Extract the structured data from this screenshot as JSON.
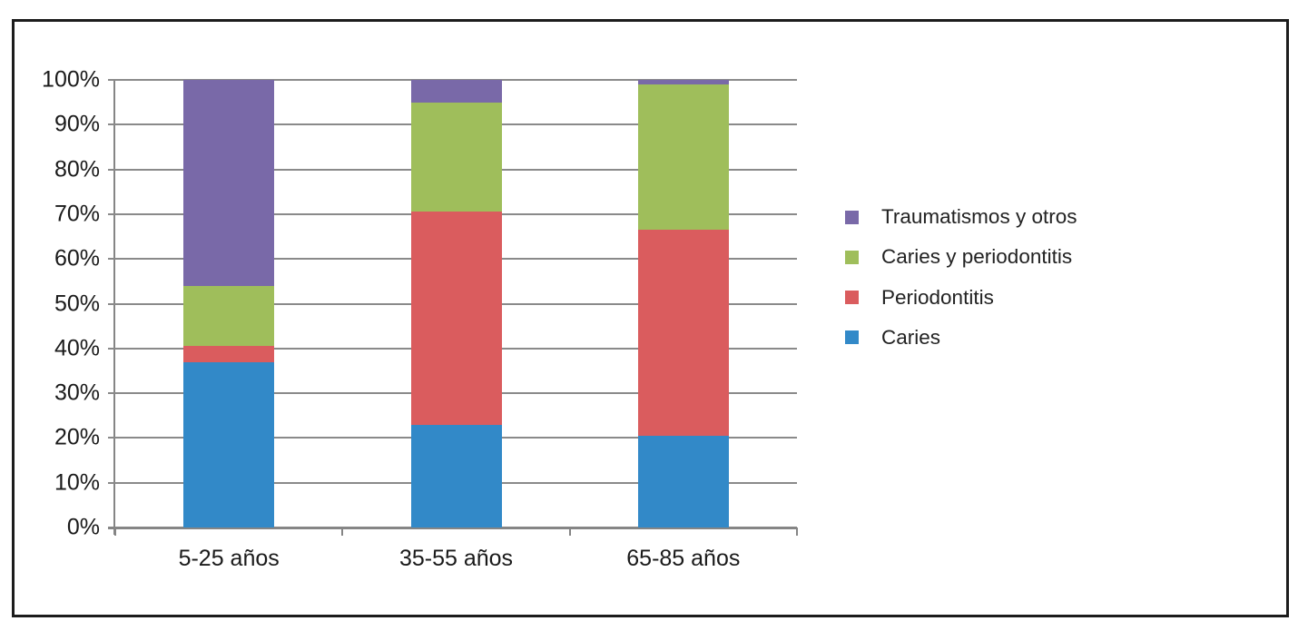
{
  "chart_data": {
    "type": "bar",
    "variant": "stacked-100-percent",
    "title": "",
    "xlabel": "",
    "ylabel": "",
    "grid": true,
    "categories": [
      "5-25 años",
      "35-55 años",
      "65-85 años"
    ],
    "series": [
      {
        "name": "Caries",
        "color": "#3289C8",
        "values": [
          37,
          23,
          20.5
        ]
      },
      {
        "name": "Periodontitis",
        "color": "#DA5C5E",
        "values": [
          3.5,
          47.5,
          46
        ]
      },
      {
        "name": "Caries y periodontitis",
        "color": "#9FBE5B",
        "values": [
          13.5,
          24.5,
          32.5
        ]
      },
      {
        "name": "Traumatismos y otros",
        "color": "#7969A8",
        "values": [
          46,
          5,
          1
        ]
      }
    ],
    "y_axis": {
      "min": 0,
      "max": 100,
      "step": 10,
      "tick_labels": [
        "0%",
        "10%",
        "20%",
        "30%",
        "40%",
        "50%",
        "60%",
        "70%",
        "80%",
        "90%",
        "100%"
      ]
    },
    "legend": {
      "position": "right",
      "order_top_to_bottom": [
        "Traumatismos y otros",
        "Caries y periodontitis",
        "Periodontitis",
        "Caries"
      ]
    },
    "colors": {
      "gridline": "#8a8a8a",
      "axis": "#858585",
      "frame_border": "#1c1c1c",
      "text": "#1a1a1a",
      "background": "#ffffff"
    }
  }
}
